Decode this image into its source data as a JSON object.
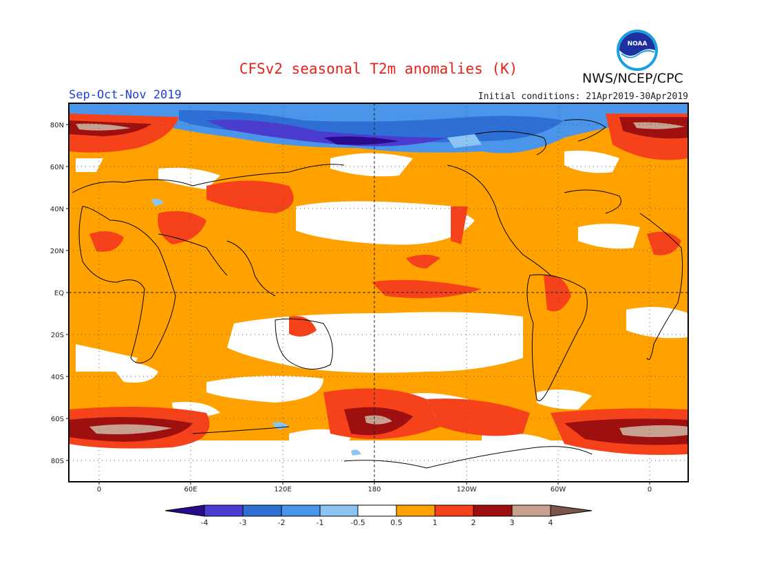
{
  "header": {
    "title": "CFSv2 seasonal T2m anomalies (K)",
    "agency": "NWS/NCEP/CPC",
    "season": "Sep-Oct-Nov 2019",
    "initial_conditions": "Initial conditions: 21Apr2019-30Apr2019",
    "logo_text": "NOAA"
  },
  "map": {
    "projection": "cylindrical-equidistant",
    "lon_range": [
      -20,
      380
    ],
    "lat_range": [
      -90,
      90
    ],
    "lat_ticks": [
      "80N",
      "60N",
      "40N",
      "20N",
      "EQ",
      "20S",
      "40S",
      "60S",
      "80S"
    ],
    "lon_ticks": [
      "0",
      "60E",
      "120E",
      "180",
      "120W",
      "60W",
      "0"
    ]
  },
  "colorbar": {
    "labels": [
      "-4",
      "-3",
      "-2",
      "-1",
      "-0.5",
      "0.5",
      "1",
      "2",
      "3",
      "4"
    ],
    "colors": [
      "#2a0a8c",
      "#4a3ccf",
      "#2e6fd6",
      "#4a94ea",
      "#8cc4f4",
      "#ffffff",
      "#ffa200",
      "#f5421a",
      "#9e1010",
      "#c8a090",
      "#7a5548"
    ]
  }
}
